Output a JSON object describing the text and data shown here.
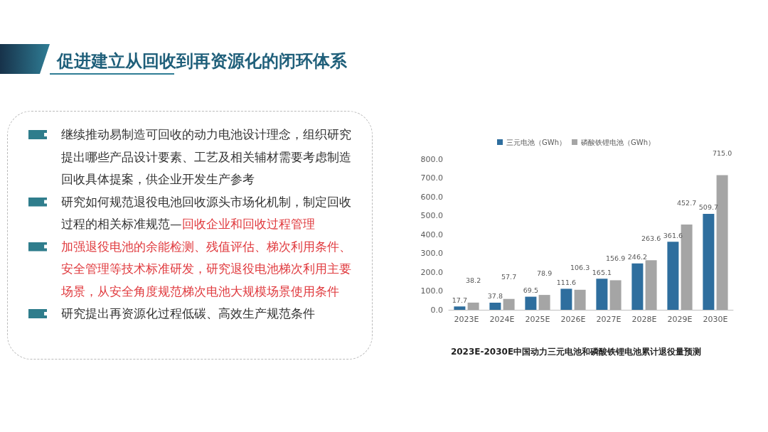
{
  "chart_data": [
    {
      "type": "other",
      "title": "促进建立从回收到再资源化的闭环体系",
      "annotations": [
        "继续推动易制造可回收的动力电池设计理念，组织研究提出哪些产品设计要素、工艺及相关辅材需要考虑制造回收具体提案，供企业开发生产参考",
        "研究如何规范退役电池回收源头市场化机制，制定回收过程的相关标准规范—",
        "回收企业和回收过程管理",
        "加强退役电池的余能检测、残值评估、梯次利用条件、安全管理等技术标准研发，研究退役电池梯次利用主要场景，从安全角度规范梯次电池大规模场景使用条件",
        "研究提出再资源化过程低碳、高效生产规范条件"
      ],
      "colors": [
        "#333333",
        "#333333",
        "#e03a3e",
        "#e03a3e",
        "#333333"
      ]
    },
    {
      "type": "bar",
      "title": "2023E-2030E中国动力三元电池和磷酸铁锂电池累计退役量预测",
      "categories": [
        "2023E",
        "2024E",
        "2025E",
        "2026E",
        "2027E",
        "2028E",
        "2029E",
        "2030E"
      ],
      "series": [
        {
          "name": "三元电池（GWh）",
          "color": "#2e6e9e",
          "values": [
            17.7,
            37.8,
            69.5,
            111.6,
            165.1,
            246.2,
            361.6,
            509.7
          ],
          "value_labels": [
            "17.7",
            "37.8",
            "69.5",
            "111.6",
            "165.1",
            "246.2",
            "361.6",
            "509.7"
          ]
        },
        {
          "name": "磷酸铁锂电池（GWh）",
          "color": "#a5a5a5",
          "values": [
            38.2,
            57.7,
            78.9,
            106.3,
            156.9,
            263.6,
            452.7,
            715.0
          ],
          "value_labels": [
            "38.2",
            "57.7",
            "78.9",
            "106.3",
            "156.9",
            "263.6",
            "452.7",
            "715.0"
          ]
        }
      ],
      "ylim": [
        0,
        800
      ],
      "yticks": [
        {
          "value": 0,
          "label": "0.0"
        },
        {
          "value": 100,
          "label": "100.0"
        },
        {
          "value": 200,
          "label": "200.0"
        },
        {
          "value": 300,
          "label": "300.0"
        },
        {
          "value": 400,
          "label": "400.0"
        },
        {
          "value": 500,
          "label": "500.0"
        },
        {
          "value": 600,
          "label": "600.0"
        },
        {
          "value": 700,
          "label": "700.0"
        },
        {
          "value": 800,
          "label": "800.0"
        }
      ],
      "grid": false,
      "legend": "top"
    }
  ]
}
